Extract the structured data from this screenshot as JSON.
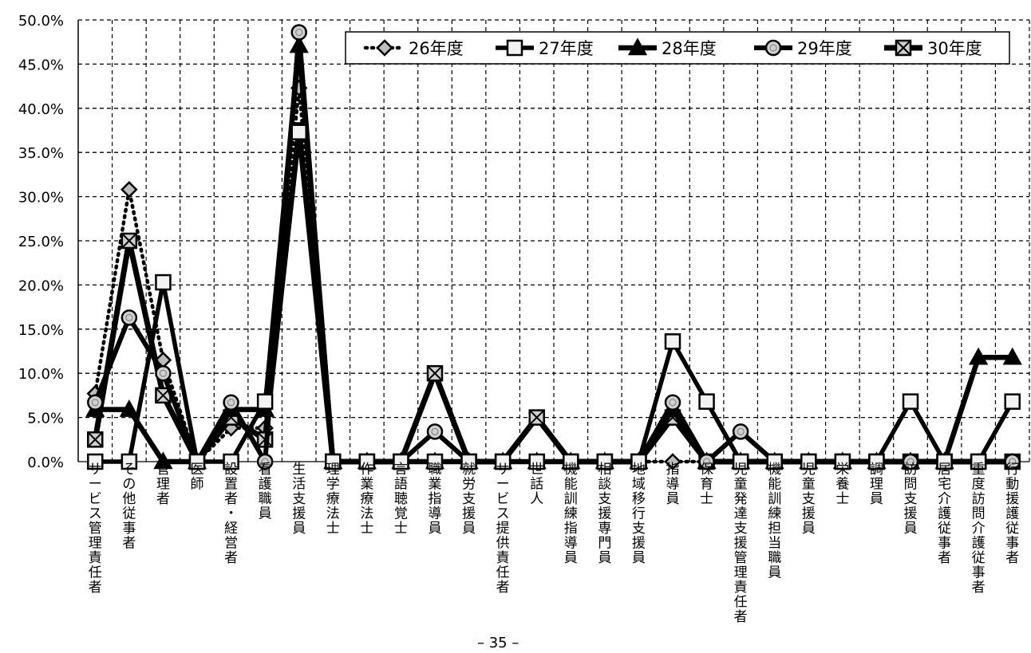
{
  "chart_data": {
    "type": "line",
    "categories": [
      "サービス管理責任者",
      "その他従事者",
      "管理者",
      "医師",
      "設置者・経営者",
      "看護職員",
      "生活支援員",
      "理学療法士",
      "作業療法士",
      "言語聴覚士",
      "職業指導員",
      "就労支援員",
      "サービス提供責任者",
      "世話人",
      "機能訓練指導員",
      "相談支援専門員",
      "地域移行支援員",
      "指導員",
      "保育士",
      "児童発達支援管理責任者",
      "機能訓練担当職員",
      "児童支援員",
      "栄養士",
      "調理員",
      "訪問支援員",
      "居宅介護従事者",
      "重度訪問介護従事者",
      "行動援護従事者"
    ],
    "series": [
      {
        "name": "26年度",
        "values": [
          7.7,
          30.8,
          11.5,
          0,
          3.8,
          3.8,
          42.3,
          0,
          0,
          0,
          0,
          0,
          0,
          0,
          0,
          0,
          0,
          0,
          0,
          0,
          0,
          0,
          0,
          0,
          0,
          0,
          0,
          0
        ]
      },
      {
        "name": "27年度",
        "values": [
          0,
          0,
          20.3,
          0,
          0,
          6.8,
          37.3,
          0,
          0,
          0,
          0,
          0,
          0,
          0,
          0,
          0,
          0,
          13.6,
          6.8,
          0,
          0,
          0,
          0,
          0,
          6.8,
          0,
          0,
          6.8
        ]
      },
      {
        "name": "28年度",
        "values": [
          5.9,
          5.9,
          0,
          0,
          5.9,
          5.9,
          47.1,
          0,
          0,
          0,
          0,
          0,
          0,
          0,
          0,
          0,
          0,
          5.9,
          0,
          0,
          0,
          0,
          0,
          0,
          0,
          0,
          11.8,
          11.8
        ]
      },
      {
        "name": "29年度",
        "values": [
          6.7,
          16.3,
          10.0,
          0,
          6.7,
          0,
          48.6,
          0,
          0,
          0,
          3.4,
          0,
          0,
          0,
          0,
          0,
          0,
          6.7,
          0,
          3.4,
          0,
          0,
          0,
          0,
          0,
          0,
          0,
          0
        ]
      },
      {
        "name": "30年度",
        "values": [
          2.5,
          25.0,
          7.5,
          0,
          5.0,
          2.5,
          37.5,
          0,
          0,
          0,
          10.0,
          0,
          0,
          5.0,
          0,
          0,
          0,
          5.0,
          0,
          0,
          0,
          0,
          0,
          0,
          0,
          0,
          0,
          0
        ]
      }
    ],
    "ylim": [
      0,
      50
    ],
    "yticks": [
      "0.0%",
      "5.0%",
      "10.0%",
      "15.0%",
      "20.0%",
      "25.0%",
      "30.0%",
      "35.0%",
      "40.0%",
      "45.0%",
      "50.0%"
    ],
    "grid": true,
    "legend_position": "top-right"
  },
  "page_number": "– 35 –"
}
